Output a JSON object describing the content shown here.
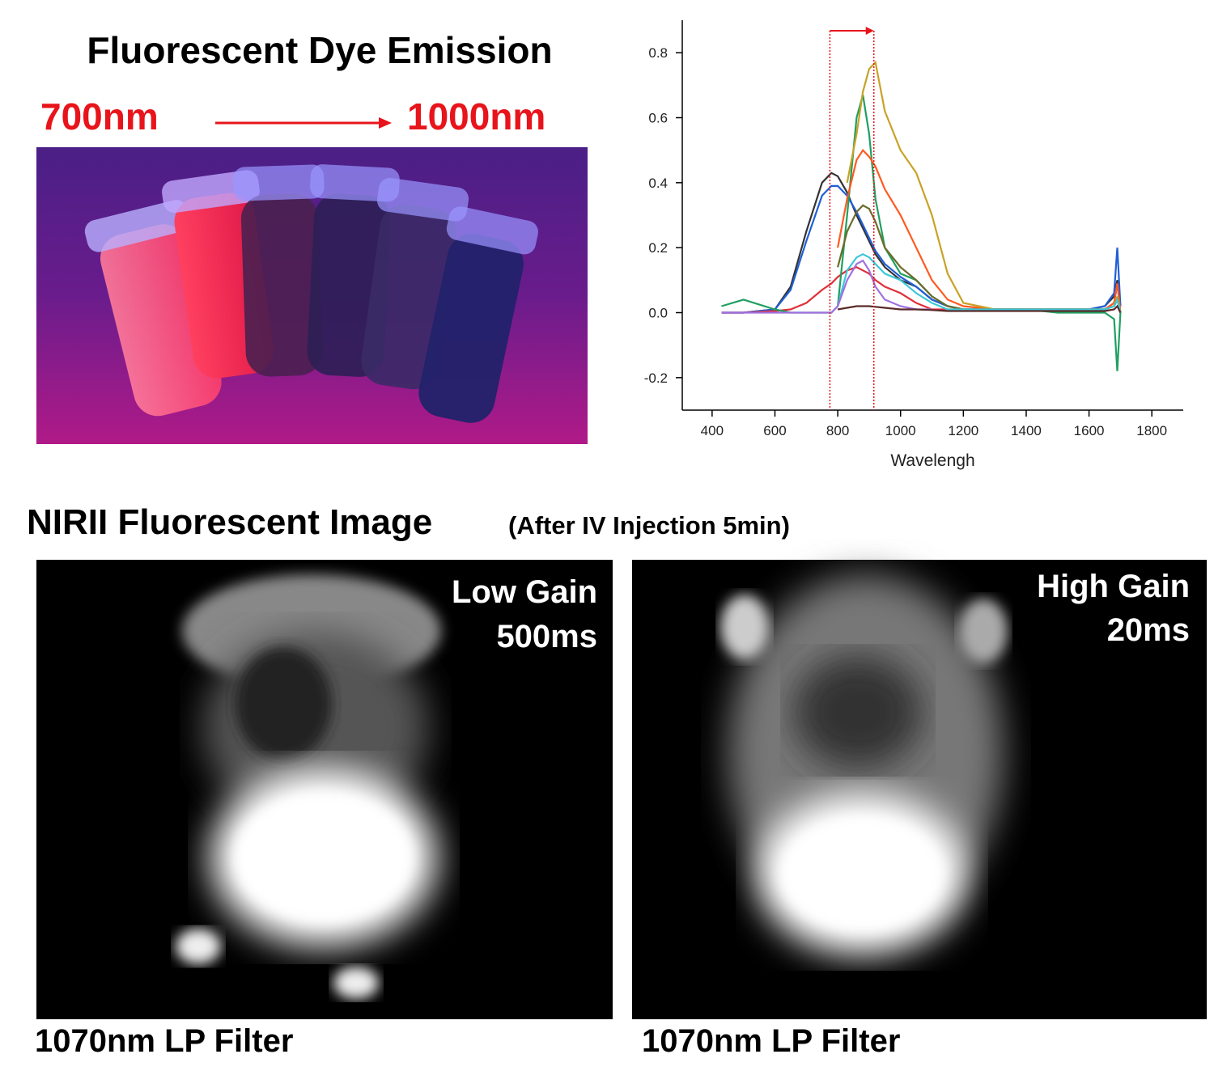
{
  "header": {
    "title": "Fluorescent Dye Emission",
    "from": "700nm",
    "to": "1000nm"
  },
  "chart_data": {
    "type": "line",
    "xlabel": "Wavelengh",
    "xlim": [
      305,
      1900
    ],
    "ylim": [
      -0.3,
      0.9
    ],
    "xticks": [
      400,
      600,
      800,
      1000,
      1200,
      1400,
      1600,
      1800
    ],
    "yticks": [
      -0.2,
      {
        "value": 0,
        "label": "0.0"
      },
      0.2,
      0.4,
      0.6,
      0.8
    ],
    "vlines": [
      775,
      915
    ],
    "x": [
      430,
      500,
      600,
      650,
      700,
      750,
      780,
      800,
      830,
      860,
      880,
      900,
      920,
      950,
      1000,
      1050,
      1100,
      1150,
      1200,
      1300,
      1400,
      1500,
      1600,
      1650,
      1680,
      1690,
      1700
    ],
    "series": [
      {
        "color": "#333333",
        "values": [
          0,
          0,
          0.01,
          0.08,
          0.25,
          0.4,
          0.43,
          0.42,
          0.37,
          0.3,
          0.26,
          0.22,
          0.18,
          0.14,
          0.1,
          0.08,
          0.04,
          0.02,
          0.01,
          0.01,
          0.01,
          0.01,
          0.01,
          0.02,
          0.05,
          0.1,
          0.02
        ]
      },
      {
        "color": "#1f5fd6",
        "values": [
          0,
          0,
          0.01,
          0.07,
          0.22,
          0.36,
          0.39,
          0.39,
          0.36,
          0.31,
          0.27,
          0.23,
          0.19,
          0.15,
          0.11,
          0.08,
          0.04,
          0.02,
          0.01,
          0.01,
          0.01,
          0.01,
          0.01,
          0.02,
          0.06,
          0.2,
          0.02
        ]
      },
      {
        "color": "#e0303a",
        "values": [
          0,
          0,
          0.005,
          0.01,
          0.03,
          0.07,
          0.09,
          0.11,
          0.13,
          0.14,
          0.13,
          0.12,
          0.1,
          0.08,
          0.06,
          0.03,
          0.01,
          0.01,
          0.01,
          0.01,
          0.01,
          0.01,
          0.01,
          0.01,
          0.03,
          0.09,
          0
        ]
      },
      {
        "color": "#1fa060",
        "values": [
          0.02,
          0.04,
          0.01,
          0,
          0,
          0,
          0,
          0.02,
          0.3,
          0.6,
          0.67,
          0.55,
          0.35,
          0.2,
          0.12,
          0.1,
          0.05,
          0.02,
          0.01,
          0.01,
          0.01,
          0,
          0,
          0,
          -0.02,
          -0.18,
          0
        ]
      },
      {
        "color": "#ff5a1f",
        "values": [
          null,
          null,
          null,
          null,
          null,
          null,
          null,
          0.2,
          0.35,
          0.47,
          0.5,
          0.48,
          0.45,
          0.38,
          0.3,
          0.2,
          0.1,
          0.04,
          0.02,
          0.01,
          0.01,
          0.01,
          0.01,
          0.01,
          0.03,
          0.09,
          0
        ]
      },
      {
        "color": "#c9a227",
        "values": [
          null,
          null,
          null,
          null,
          null,
          null,
          null,
          null,
          0.4,
          0.55,
          0.68,
          0.75,
          0.77,
          0.62,
          0.5,
          0.43,
          0.3,
          0.12,
          0.03,
          0.01,
          0.01,
          0.01,
          0.01,
          0.01,
          0.02,
          0.05,
          0
        ]
      },
      {
        "color": "#6b6b2a",
        "values": [
          null,
          null,
          null,
          null,
          null,
          null,
          null,
          0.14,
          0.25,
          0.31,
          0.33,
          0.32,
          0.28,
          0.2,
          0.14,
          0.1,
          0.05,
          0.02,
          0.01,
          0.01,
          0.01,
          0.01,
          0.01,
          0.01,
          0.02,
          0.04,
          0
        ]
      },
      {
        "color": "#3cc8d8",
        "values": [
          null,
          null,
          null,
          null,
          null,
          null,
          null,
          0.02,
          0.13,
          0.17,
          0.18,
          0.17,
          0.15,
          0.12,
          0.1,
          0.06,
          0.03,
          0.01,
          0.01,
          0.01,
          0.01,
          0.01,
          0.01,
          0.01,
          0.02,
          0.04,
          0
        ]
      },
      {
        "color": "#a070e0",
        "values": [
          0,
          0,
          0,
          0,
          0,
          0,
          0,
          0.02,
          0.1,
          0.15,
          0.16,
          0.13,
          0.08,
          0.04,
          0.02,
          0.01,
          0.01,
          null,
          null,
          null,
          null,
          null,
          null,
          null,
          null,
          null,
          null
        ]
      },
      {
        "color": "#5a2a2a",
        "values": [
          null,
          null,
          null,
          null,
          null,
          null,
          null,
          0.01,
          0.015,
          0.02,
          0.02,
          0.02,
          0.018,
          0.015,
          0.01,
          0.01,
          0.008,
          0.005,
          0.005,
          0.005,
          0.005,
          0.005,
          0.005,
          0.005,
          0.01,
          0.02,
          0
        ]
      }
    ]
  },
  "section": {
    "title": "NIRII Fluorescent Image",
    "subtitle": "(After IV Injection 5min)"
  },
  "panels": [
    {
      "gain": "Low Gain",
      "exposure": "500ms",
      "filter": "1070nm LP Filter"
    },
    {
      "gain": "High Gain",
      "exposure": "20ms",
      "filter": "1070nm LP Filter"
    }
  ]
}
